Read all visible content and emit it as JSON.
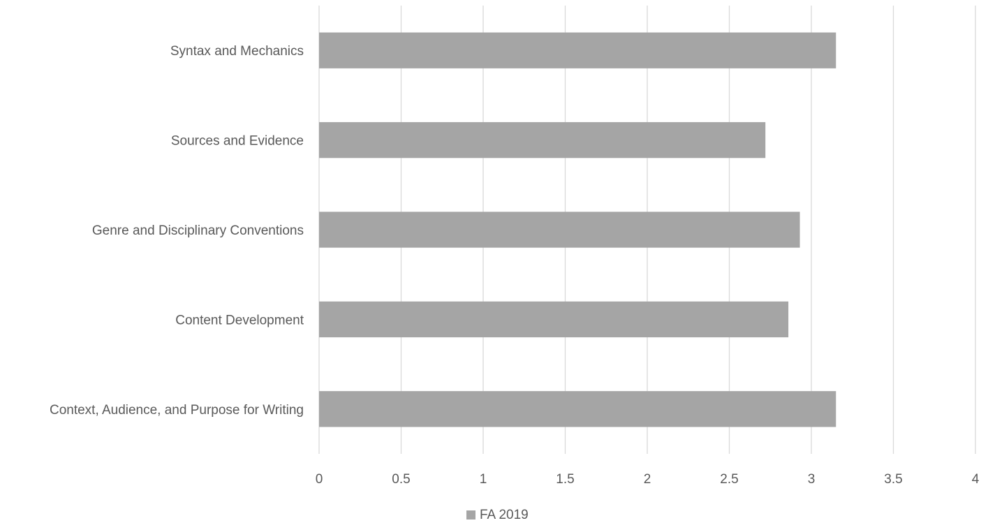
{
  "chart_data": {
    "type": "bar",
    "orientation": "horizontal",
    "categories": [
      "Syntax and Mechanics",
      "Sources and Evidence",
      "Genre and Disciplinary Conventions",
      "Content Development",
      "Context, Audience, and Purpose for Writing"
    ],
    "series": [
      {
        "name": "FA 2019",
        "color": "#a5a5a5",
        "values": [
          3.15,
          2.72,
          2.93,
          2.86,
          3.15
        ]
      }
    ],
    "xlim": [
      0,
      4
    ],
    "xticks": [
      "0",
      "0.5",
      "1",
      "1.5",
      "2",
      "2.5",
      "3",
      "3.5",
      "4"
    ],
    "grid": true,
    "legend_position": "bottom",
    "gridline_color": "#d9d9d9",
    "text_color": "#595959"
  }
}
